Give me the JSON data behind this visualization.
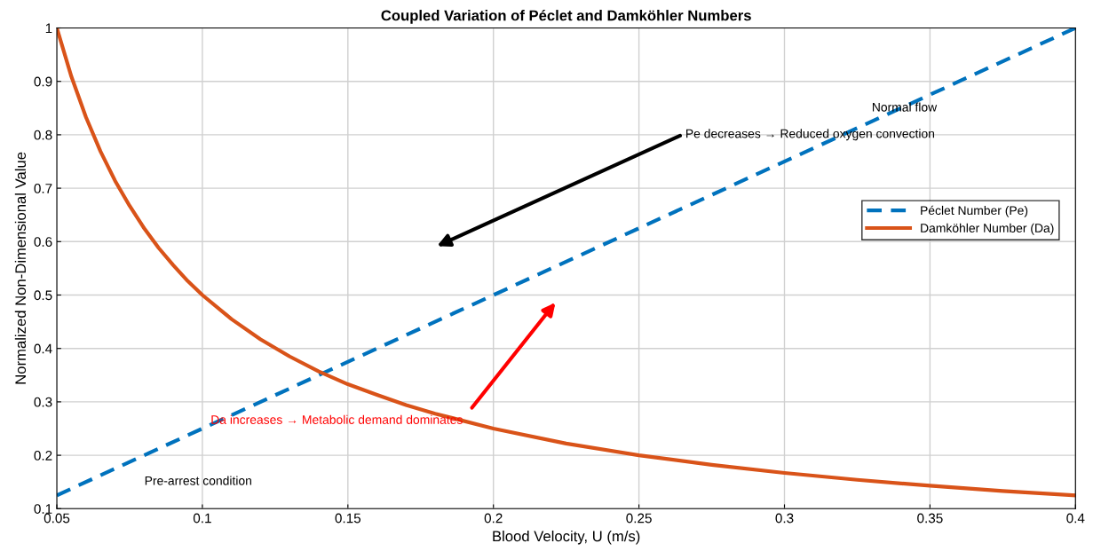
{
  "chart_data": {
    "type": "line",
    "title": "Coupled Variation of Péclet and Damköhler Numbers",
    "xlabel": "Blood Velocity, U (m/s)",
    "ylabel": "Normalized Non-Dimensional Value",
    "series": [
      {
        "name": "Péclet Number (Pe)",
        "color": "#0072bd",
        "line_style": "dashed",
        "x": [
          0.05,
          0.4
        ],
        "values": [
          0.125,
          1.0
        ]
      },
      {
        "name": "Damköhler Number (Da)",
        "color": "#d95319",
        "line_style": "solid",
        "x": [
          0.05,
          0.055,
          0.06,
          0.065,
          0.07,
          0.075,
          0.08,
          0.085,
          0.09,
          0.095,
          0.1,
          0.11,
          0.12,
          0.13,
          0.14,
          0.15,
          0.16,
          0.17,
          0.18,
          0.2,
          0.225,
          0.25,
          0.275,
          0.3,
          0.325,
          0.35,
          0.375,
          0.4
        ],
        "values": [
          1.0,
          0.909,
          0.833,
          0.769,
          0.714,
          0.667,
          0.625,
          0.588,
          0.556,
          0.526,
          0.5,
          0.455,
          0.417,
          0.385,
          0.357,
          0.333,
          0.313,
          0.294,
          0.278,
          0.25,
          0.222,
          0.2,
          0.182,
          0.167,
          0.154,
          0.143,
          0.133,
          0.125
        ]
      }
    ],
    "xlim": [
      0.05,
      0.4
    ],
    "xticks": [
      0.05,
      0.1,
      0.15,
      0.2,
      0.25,
      0.3,
      0.35,
      0.4
    ],
    "ylim": [
      0.1,
      1
    ],
    "yticks": [
      0.1,
      0.2,
      0.3,
      0.4,
      0.5,
      0.6,
      0.7,
      0.8,
      0.9,
      1
    ],
    "grid": true,
    "legend": "right",
    "marker": "none",
    "annotations": [
      "Pe decreases → Reduced oxygen convection",
      "Da increases → Metabolic demand dominates",
      "Normal flow",
      "Pre-arrest condition"
    ]
  }
}
